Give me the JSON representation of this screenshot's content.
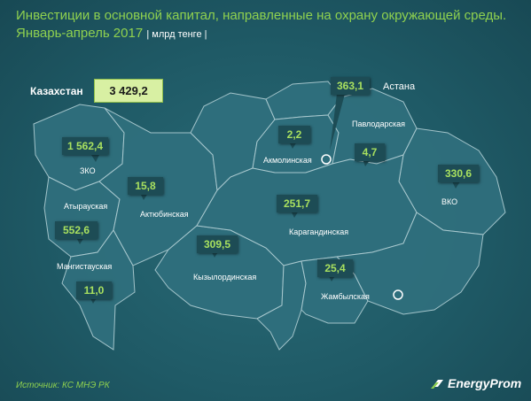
{
  "title": {
    "line1": "Инвестиции в основной капитал, направленные на охрану окружающей среды.",
    "line2": "Январь-апрель 2017",
    "unit": "| млрд тенге |"
  },
  "kazakhstan": {
    "label": "Казахстан",
    "value": "3 429,2"
  },
  "regions": [
    {
      "name": "ЗКО",
      "value": "1 562,4"
    },
    {
      "name": "Атырауская",
      "value": "552,6"
    },
    {
      "name": "Мангистауская",
      "value": "11,0"
    },
    {
      "name": "Актюбинская",
      "value": "15,8"
    },
    {
      "name": "Кызылординская",
      "value": "309,5"
    },
    {
      "name": "Акмолинская",
      "value": "2,2"
    },
    {
      "name": "Астана",
      "value": "363,1"
    },
    {
      "name": "Павлодарская",
      "value": "4,7"
    },
    {
      "name": "ВКО",
      "value": "330,6"
    },
    {
      "name": "Карагандинская",
      "value": "251,7"
    },
    {
      "name": "Жамбылская",
      "value": "25,4"
    }
  ],
  "source": "Источник: КС МНЭ РК",
  "logo": "EnergyProm",
  "colors": {
    "accent": "#8fd14f",
    "background": "#1f5a66",
    "region_fill": "#2f6f7d",
    "total_box": "#d8f0a3"
  }
}
